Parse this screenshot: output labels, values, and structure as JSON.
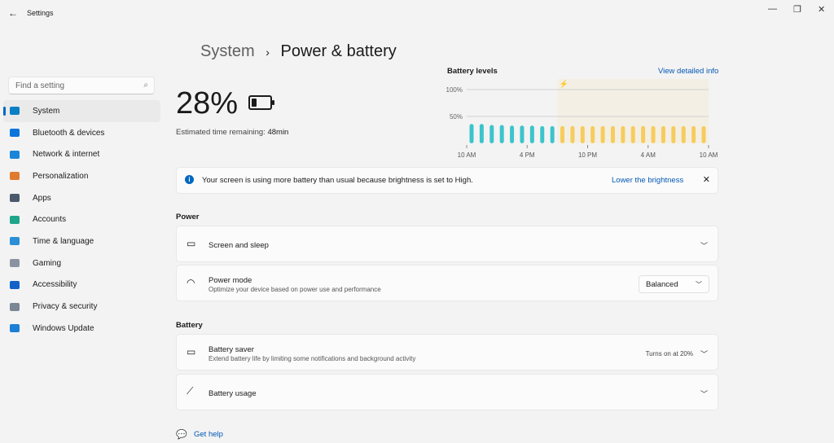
{
  "window": {
    "title": "Settings"
  },
  "search": {
    "placeholder": "Find a setting"
  },
  "sidebar": {
    "items": [
      {
        "label": "System",
        "color": "#0a7fc4"
      },
      {
        "label": "Bluetooth & devices",
        "color": "#0a74da"
      },
      {
        "label": "Network & internet",
        "color": "#1b86d9"
      },
      {
        "label": "Personalization",
        "color": "#e07b2e"
      },
      {
        "label": "Apps",
        "color": "#4a5a6a"
      },
      {
        "label": "Accounts",
        "color": "#1fa58a"
      },
      {
        "label": "Time & language",
        "color": "#2a8fd6"
      },
      {
        "label": "Gaming",
        "color": "#8a94a0"
      },
      {
        "label": "Accessibility",
        "color": "#1163c9"
      },
      {
        "label": "Privacy & security",
        "color": "#7c8794"
      },
      {
        "label": "Windows Update",
        "color": "#1b7fd6"
      }
    ]
  },
  "breadcrumb": {
    "parent": "System",
    "sep": "›",
    "current": "Power & battery"
  },
  "battery": {
    "percent": "28%",
    "est_label": "Estimated time remaining:",
    "est_value": "48min"
  },
  "chart_data": {
    "type": "bar",
    "title": "Battery levels",
    "link": "View detailed info",
    "yticks": [
      "100%",
      "50%"
    ],
    "ylim": [
      0,
      100
    ],
    "xticks": [
      "10 AM",
      "4 PM",
      "10 PM",
      "4 AM",
      "10 AM"
    ],
    "values": [
      36,
      36,
      34,
      34,
      33,
      33,
      33,
      32,
      32,
      32,
      32,
      32,
      32,
      32,
      32,
      32,
      32,
      32,
      32,
      32,
      32,
      32,
      32,
      32
    ],
    "discharging_color": "#3cc4cc",
    "charging_color": "#f7cc5e",
    "plugged_in_from_index": 9
  },
  "notice": {
    "text": "Your screen is using more battery than usual because brightness is set to High.",
    "action": "Lower the brightness"
  },
  "power": {
    "heading": "Power",
    "screen_sleep": "Screen and sleep",
    "mode_title": "Power mode",
    "mode_sub": "Optimize your device based on power use and performance",
    "mode_value": "Balanced"
  },
  "batterysec": {
    "heading": "Battery",
    "saver_title": "Battery saver",
    "saver_sub": "Extend battery life by limiting some notifications and background activity",
    "saver_status": "Turns on at 20%",
    "usage": "Battery usage"
  },
  "help": {
    "label": "Get help"
  }
}
